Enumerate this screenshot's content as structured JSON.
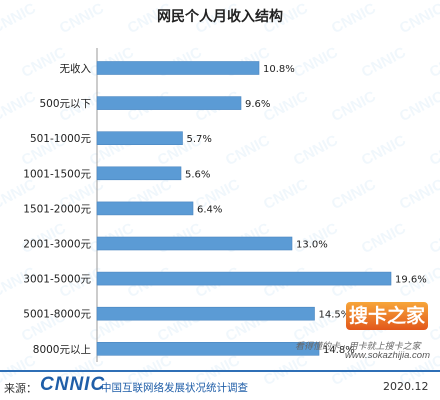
{
  "chart_data": {
    "type": "bar",
    "orientation": "horizontal",
    "title": "网民个人月收入结构",
    "categories": [
      "无收入",
      "500元以下",
      "501-1000元",
      "1001-1500元",
      "1501-2000元",
      "2001-3000元",
      "3001-5000元",
      "5001-8000元",
      "8000元以上"
    ],
    "values": [
      10.8,
      9.6,
      5.7,
      5.6,
      6.4,
      13.0,
      19.6,
      14.5,
      14.8
    ],
    "value_labels": [
      "10.8%",
      "9.6%",
      "5.7%",
      "5.6%",
      "6.4%",
      "13.0%",
      "19.6%",
      "14.5%",
      "14.8%"
    ],
    "value_unit": "%",
    "xlim": [
      0,
      20
    ],
    "grid": false,
    "legend": "none",
    "bar_color": "#5b9bd5"
  },
  "footer": {
    "source_label": "来源：",
    "logo_text": "CNNIC",
    "logo_subtitle": "中国互联网络发展状况统计调查",
    "date": "2020.12"
  },
  "watermark": {
    "text": "CNNIC",
    "site_logo": "搜卡之家",
    "site_tagline": "看得懂的卡 · 用卡就上搜卡之家",
    "site_url": "www.sokazhijia.com"
  },
  "colors": {
    "bar": "#5b9bd5",
    "brand": "#1f5ea8",
    "accent": "#e2571b"
  }
}
